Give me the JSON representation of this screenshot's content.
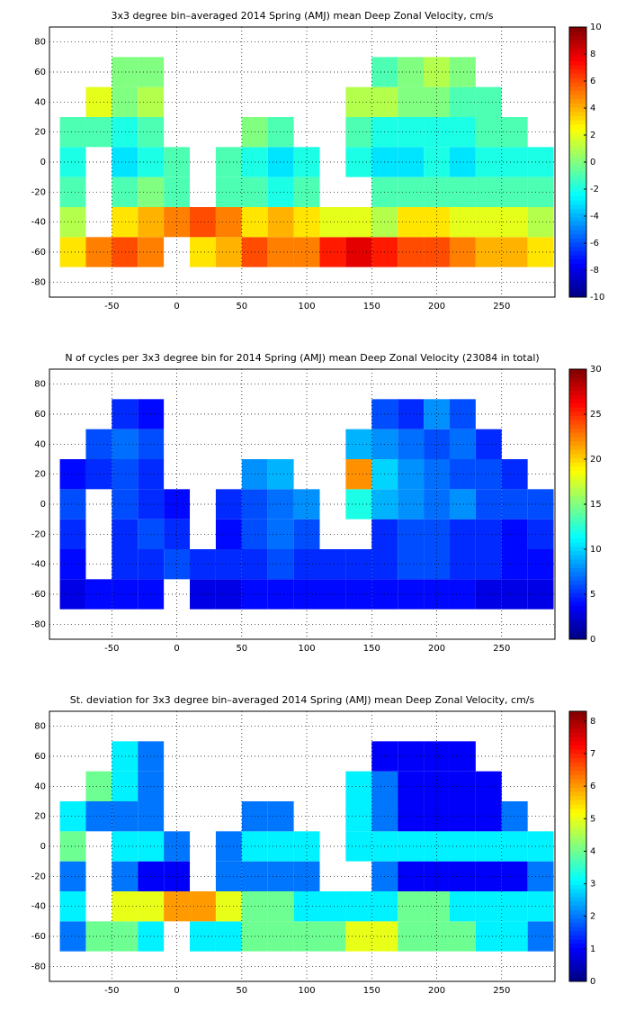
{
  "chart_data": [
    {
      "type": "heatmap",
      "title": "3x3 degree bin–averaged 2014 Spring (AMJ) mean Deep Zonal Velocity, cm/s",
      "colormap": "jet",
      "grid": true,
      "x_bins": [
        -90,
        -70,
        -50,
        -30,
        -10,
        10,
        30,
        50,
        70,
        90,
        110,
        130,
        150,
        170,
        190,
        210,
        230,
        250,
        270,
        290
      ],
      "y_bins": [
        -70,
        -50,
        -30,
        -10,
        10,
        30,
        50,
        70
      ],
      "values": [
        [
          3,
          5,
          6,
          5,
          null,
          3,
          4,
          6,
          5,
          5,
          7,
          8,
          7,
          6,
          6,
          5,
          4,
          4,
          3
        ],
        [
          1,
          null,
          3,
          4,
          5,
          6,
          5,
          3,
          4,
          3,
          2,
          2,
          1,
          3,
          3,
          2,
          2,
          2,
          1
        ],
        [
          -1,
          null,
          -1,
          0,
          -1,
          null,
          -1,
          -1,
          -2,
          -1,
          null,
          null,
          -1,
          -1,
          -1,
          -1,
          -1,
          -1,
          -1
        ],
        [
          -2,
          null,
          -3,
          -2,
          -1,
          null,
          -1,
          -2,
          -3,
          -2,
          null,
          -2,
          -3,
          -3,
          -2,
          -3,
          -2,
          -2,
          -2
        ],
        [
          -1,
          -1,
          -2,
          -1,
          null,
          null,
          null,
          0,
          -1,
          null,
          null,
          -1,
          -2,
          -2,
          -2,
          -2,
          -1,
          -1,
          null
        ],
        [
          null,
          2,
          0,
          1,
          null,
          null,
          null,
          null,
          null,
          null,
          null,
          1,
          1,
          0,
          0,
          -1,
          -1,
          null,
          null
        ],
        [
          null,
          null,
          0,
          0,
          null,
          null,
          null,
          null,
          null,
          null,
          null,
          null,
          -1,
          0,
          1,
          0,
          null,
          null,
          null
        ]
      ],
      "xlim": [
        -98,
        291
      ],
      "ylim": [
        -90,
        90
      ],
      "xticks": [
        -50,
        0,
        50,
        100,
        150,
        200,
        250
      ],
      "yticks": [
        -80,
        -60,
        -40,
        -20,
        0,
        20,
        40,
        60,
        80
      ],
      "clim": [
        -10,
        10
      ],
      "cticks": [
        -10,
        -8,
        -6,
        -4,
        -2,
        0,
        2,
        4,
        6,
        8,
        10
      ]
    },
    {
      "type": "heatmap",
      "title": "N of cycles per 3x3 degree bin for 2014 Spring (AMJ) mean Deep Zonal Velocity (23084 in total)",
      "colormap": "jet",
      "grid": true,
      "x_bins": [
        -90,
        -70,
        -50,
        -30,
        -10,
        10,
        30,
        50,
        70,
        90,
        110,
        130,
        150,
        170,
        190,
        210,
        230,
        250,
        270,
        290
      ],
      "y_bins": [
        -70,
        -50,
        -30,
        -10,
        10,
        30,
        50,
        70
      ],
      "values": [
        [
          3,
          4,
          4,
          4,
          null,
          3,
          3,
          4,
          4,
          4,
          4,
          4,
          4,
          4,
          4,
          4,
          3,
          3,
          3
        ],
        [
          4,
          null,
          5,
          5,
          6,
          5,
          5,
          5,
          6,
          5,
          5,
          5,
          5,
          6,
          6,
          5,
          5,
          4,
          4
        ],
        [
          5,
          null,
          5,
          6,
          5,
          null,
          4,
          6,
          7,
          6,
          null,
          null,
          5,
          6,
          6,
          5,
          5,
          4,
          5
        ],
        [
          6,
          null,
          6,
          5,
          4,
          null,
          5,
          6,
          7,
          8,
          null,
          12,
          9,
          8,
          7,
          8,
          6,
          6,
          6
        ],
        [
          4,
          5,
          6,
          5,
          null,
          null,
          null,
          8,
          9,
          null,
          null,
          22,
          10,
          8,
          7,
          6,
          6,
          5,
          null
        ],
        [
          null,
          6,
          7,
          6,
          null,
          null,
          null,
          null,
          null,
          null,
          null,
          9,
          8,
          7,
          6,
          7,
          5,
          null,
          null
        ],
        [
          null,
          null,
          5,
          4,
          null,
          null,
          null,
          null,
          null,
          null,
          null,
          null,
          6,
          5,
          8,
          6,
          null,
          null,
          null
        ]
      ],
      "xlim": [
        -98,
        291
      ],
      "ylim": [
        -90,
        90
      ],
      "xticks": [
        -50,
        0,
        50,
        100,
        150,
        200,
        250
      ],
      "yticks": [
        -80,
        -60,
        -40,
        -20,
        0,
        20,
        40,
        60,
        80
      ],
      "clim": [
        0,
        30
      ],
      "cticks": [
        0,
        5,
        10,
        15,
        20,
        25,
        30
      ]
    },
    {
      "type": "heatmap",
      "title": "St. deviation for 3x3 degree bin–averaged 2014 Spring (AMJ) mean Deep Zonal Velocity, cm/s",
      "colormap": "jet",
      "grid": true,
      "x_bins": [
        -90,
        -70,
        -50,
        -30,
        -10,
        10,
        30,
        50,
        70,
        90,
        110,
        130,
        150,
        170,
        190,
        210,
        230,
        250,
        270,
        290
      ],
      "y_bins": [
        -70,
        -50,
        -30,
        -10,
        10,
        30,
        50,
        70
      ],
      "values": [
        [
          2,
          4,
          4,
          3,
          null,
          3,
          3,
          4,
          4,
          4,
          4,
          5,
          5,
          4,
          4,
          4,
          3,
          3,
          2
        ],
        [
          3,
          null,
          5,
          5,
          6,
          6,
          5,
          4,
          4,
          3,
          3,
          3,
          3,
          4,
          4,
          3,
          3,
          3,
          3
        ],
        [
          2,
          null,
          2,
          1,
          1,
          null,
          2,
          2,
          2,
          2,
          null,
          null,
          2,
          1,
          1,
          1,
          1,
          1,
          2
        ],
        [
          4,
          null,
          3,
          3,
          2,
          null,
          2,
          3,
          3,
          3,
          null,
          3,
          3,
          3,
          3,
          3,
          3,
          3,
          3
        ],
        [
          3,
          2,
          2,
          2,
          null,
          null,
          null,
          2,
          2,
          null,
          null,
          3,
          2,
          1,
          1,
          1,
          1,
          2,
          null
        ],
        [
          null,
          4,
          3,
          2,
          null,
          null,
          null,
          null,
          null,
          null,
          null,
          3,
          2,
          1,
          1,
          1,
          1,
          null,
          null
        ],
        [
          null,
          null,
          3,
          2,
          null,
          null,
          null,
          null,
          null,
          null,
          null,
          null,
          1,
          1,
          1,
          1,
          null,
          null,
          null
        ]
      ],
      "xlim": [
        -98,
        291
      ],
      "ylim": [
        -90,
        90
      ],
      "xticks": [
        -50,
        0,
        50,
        100,
        150,
        200,
        250
      ],
      "yticks": [
        -80,
        -60,
        -40,
        -20,
        0,
        20,
        40,
        60,
        80
      ],
      "clim": [
        0,
        8.3
      ],
      "cticks": [
        0,
        1,
        2,
        3,
        4,
        5,
        6,
        7,
        8
      ]
    }
  ]
}
